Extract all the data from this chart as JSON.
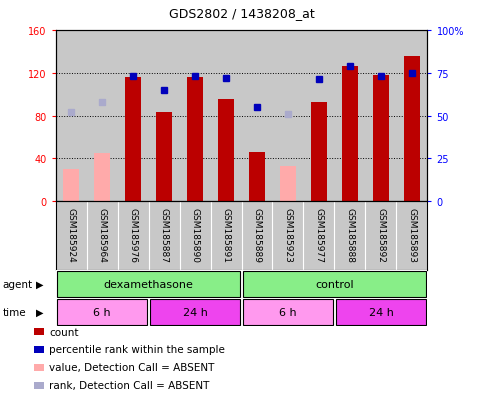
{
  "title": "GDS2802 / 1438208_at",
  "samples": [
    "GSM185924",
    "GSM185964",
    "GSM185976",
    "GSM185887",
    "GSM185890",
    "GSM185891",
    "GSM185889",
    "GSM185923",
    "GSM185977",
    "GSM185888",
    "GSM185892",
    "GSM185893"
  ],
  "count_values": [
    null,
    null,
    116,
    83,
    116,
    95,
    46,
    null,
    93,
    126,
    118,
    135
  ],
  "count_absent": [
    30,
    45,
    null,
    null,
    null,
    null,
    null,
    33,
    null,
    null,
    null,
    null
  ],
  "rank_values": [
    null,
    null,
    73,
    65,
    73,
    72,
    55,
    null,
    71,
    79,
    73,
    75
  ],
  "rank_absent": [
    52,
    58,
    null,
    null,
    null,
    null,
    null,
    51,
    null,
    null,
    null,
    null
  ],
  "ylim_left": [
    0,
    160
  ],
  "ylim_right": [
    0,
    100
  ],
  "yticks_left": [
    0,
    40,
    80,
    120,
    160
  ],
  "yticks_right": [
    0,
    25,
    50,
    75,
    100
  ],
  "ytick_labels_left": [
    "0",
    "40",
    "80",
    "120",
    "160"
  ],
  "ytick_labels_right": [
    "0",
    "25",
    "50",
    "75",
    "100%"
  ],
  "bar_color": "#BB0000",
  "absent_bar_color": "#FFAAAA",
  "rank_color": "#0000BB",
  "rank_absent_color": "#AAAACC",
  "plot_bg_color": "#C8C8C8",
  "label_bg_color": "#C8C8C8",
  "agent_color": "#88EE88",
  "time_color_light": "#FF99EE",
  "time_color_dark": "#EE44EE",
  "legend_colors": [
    "#BB0000",
    "#0000BB",
    "#FFAAAA",
    "#AAAACC"
  ],
  "legend_labels": [
    "count",
    "percentile rank within the sample",
    "value, Detection Call = ABSENT",
    "rank, Detection Call = ABSENT"
  ]
}
